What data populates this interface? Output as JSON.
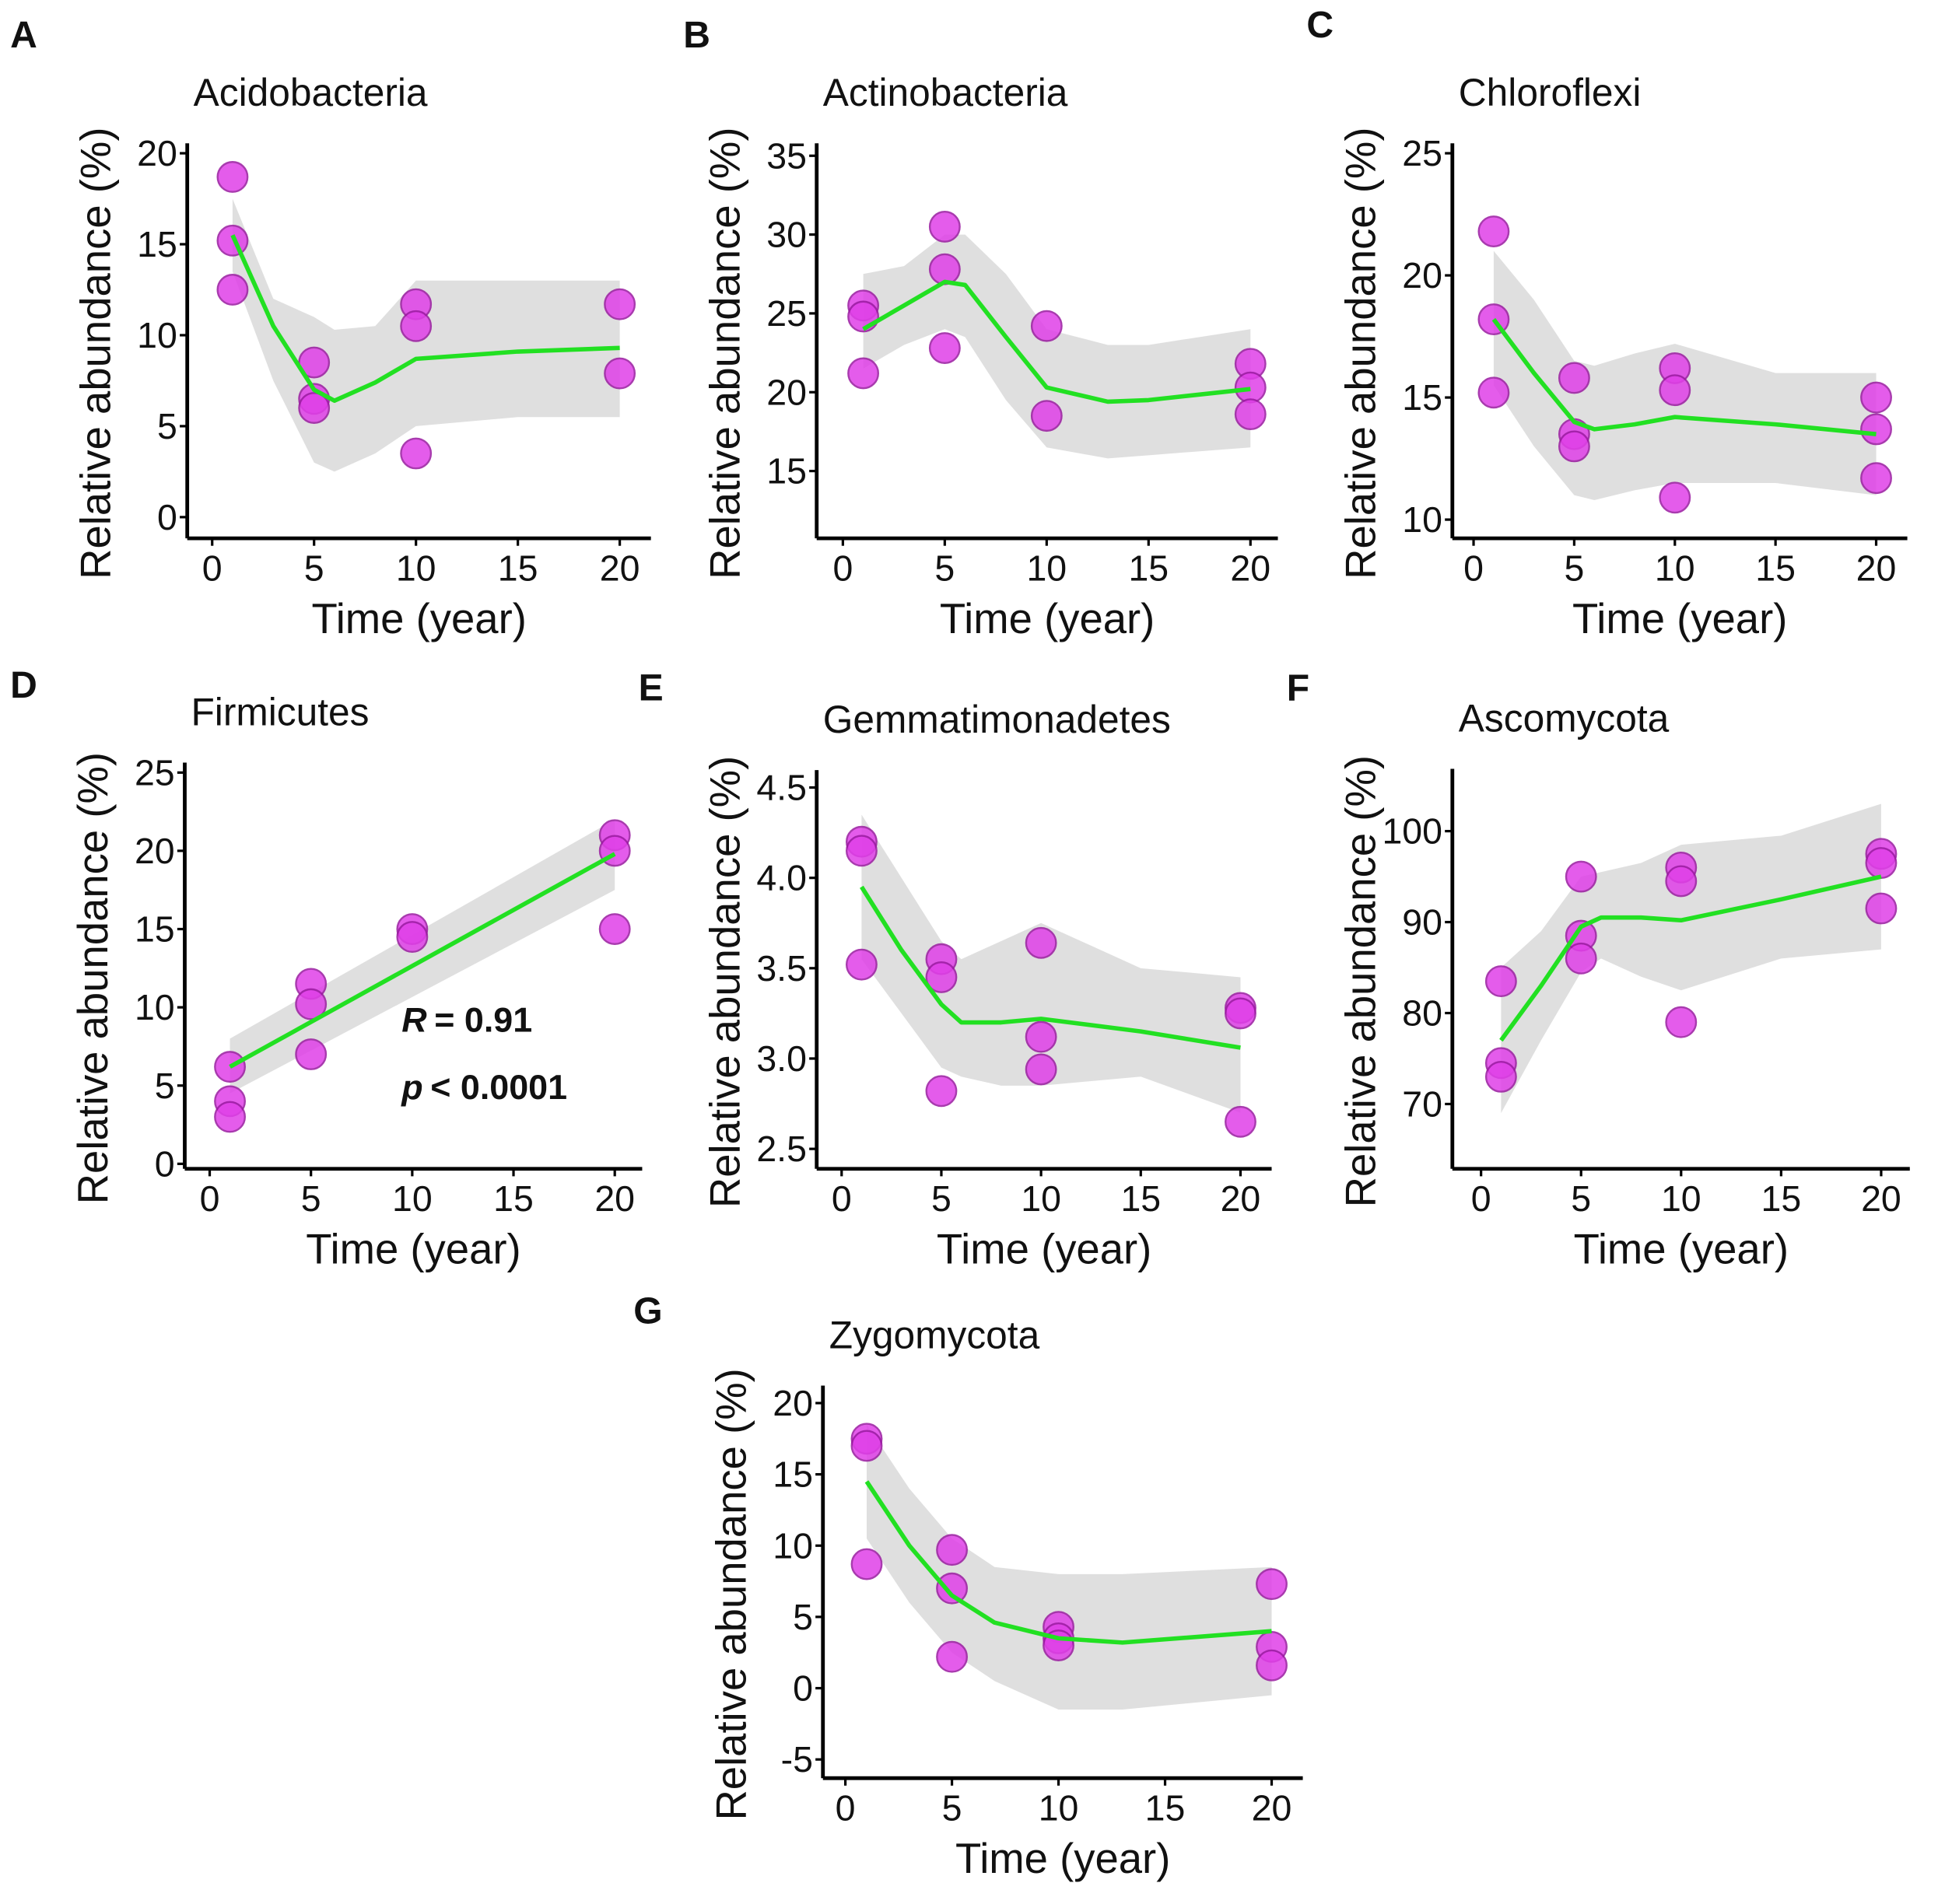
{
  "colors": {
    "point_fill": "#e040e8",
    "point_stroke": "#9a1aa0",
    "fit_line": "#22e022",
    "ci_band": "#dcdcdc"
  },
  "chart_data": [
    {
      "type": "scatter",
      "panel": "A",
      "title": "Acidobacteria",
      "xlabel": "Time (year)",
      "ylabel": "Relative abundance (%)",
      "xlim": [
        0,
        20
      ],
      "ylim": [
        -1,
        21
      ],
      "xticks": [
        "0",
        "5",
        "10",
        "15",
        "20"
      ],
      "yticks": [
        "0",
        "5",
        "10",
        "15",
        "20"
      ],
      "points": {
        "x": [
          1,
          1,
          1,
          5,
          5,
          5,
          10,
          10,
          10,
          20,
          20
        ],
        "y": [
          18.7,
          15.2,
          12.5,
          8.5,
          6.5,
          6.0,
          11.7,
          10.5,
          3.5,
          11.7,
          7.9
        ]
      },
      "fit": {
        "x": [
          1,
          3,
          5,
          6,
          8,
          10,
          15,
          20
        ],
        "y": [
          15.5,
          10.5,
          7.0,
          6.4,
          7.4,
          8.7,
          9.1,
          9.3
        ]
      },
      "ci": {
        "lower": [
          13.5,
          7.5,
          3.0,
          2.5,
          3.5,
          5.0,
          5.5,
          5.5
        ],
        "upper": [
          17.5,
          12.0,
          11.0,
          10.3,
          10.5,
          13.0,
          13.0,
          13.0
        ]
      }
    },
    {
      "type": "scatter",
      "panel": "B",
      "title": "Actinobacteria",
      "xlabel": "Time (year)",
      "ylabel": "Relative abundance (%)",
      "xlim": [
        0,
        20
      ],
      "ylim": [
        11,
        35
      ],
      "xticks": [
        "0",
        "5",
        "10",
        "15",
        "20"
      ],
      "yticks": [
        "15",
        "20",
        "25",
        "30",
        "35"
      ],
      "points": {
        "x": [
          1,
          1,
          1,
          5,
          5,
          5,
          10,
          10,
          20,
          20,
          20
        ],
        "y": [
          25.5,
          24.8,
          21.2,
          30.5,
          27.8,
          22.8,
          24.2,
          18.5,
          21.8,
          20.3,
          18.6
        ]
      },
      "fit": {
        "x": [
          1,
          3,
          5,
          6,
          8,
          10,
          13,
          15,
          20
        ],
        "y": [
          24.0,
          25.5,
          27.0,
          26.8,
          23.5,
          20.3,
          19.4,
          19.5,
          20.2
        ]
      },
      "ci": {
        "lower": [
          21.5,
          23.0,
          24.0,
          23.5,
          19.5,
          16.5,
          15.8,
          16.0,
          16.5
        ],
        "upper": [
          27.5,
          28.0,
          30.0,
          30.0,
          27.5,
          24.0,
          23.0,
          23.0,
          24.0
        ]
      }
    },
    {
      "type": "scatter",
      "panel": "C",
      "title": "Chloroflexi",
      "xlabel": "Time (year)",
      "ylabel": "Relative abundance (%)",
      "xlim": [
        0,
        20
      ],
      "ylim": [
        9.6,
        25
      ],
      "xticks": [
        "0",
        "5",
        "10",
        "15",
        "20"
      ],
      "yticks": [
        "10",
        "15",
        "20",
        "25"
      ],
      "points": {
        "x": [
          1,
          1,
          1,
          5,
          5,
          5,
          10,
          10,
          10,
          20,
          20,
          20
        ],
        "y": [
          21.8,
          18.2,
          15.2,
          15.8,
          13.5,
          13.0,
          16.2,
          15.3,
          10.9,
          15.0,
          13.7,
          11.7
        ]
      },
      "fit": {
        "x": [
          1,
          3,
          5,
          6,
          8,
          10,
          15,
          20
        ],
        "y": [
          18.2,
          16.0,
          14.0,
          13.7,
          13.9,
          14.2,
          13.9,
          13.5
        ]
      },
      "ci": {
        "lower": [
          15.5,
          13.0,
          11.0,
          10.8,
          11.2,
          11.5,
          11.5,
          11.0
        ],
        "upper": [
          21.0,
          19.0,
          16.5,
          16.3,
          16.8,
          17.2,
          16.0,
          16.0
        ]
      }
    },
    {
      "type": "scatter",
      "panel": "D",
      "title": "Firmicutes",
      "xlabel": "Time (year)",
      "ylabel": "Relative abundance (%)",
      "xlim": [
        0,
        20
      ],
      "ylim": [
        0,
        25
      ],
      "xticks": [
        "0",
        "5",
        "10",
        "15",
        "20"
      ],
      "yticks": [
        "0",
        "5",
        "10",
        "15",
        "20",
        "25"
      ],
      "points": {
        "x": [
          1,
          1,
          1,
          5,
          5,
          5,
          10,
          10,
          20,
          20,
          20
        ],
        "y": [
          6.2,
          4.0,
          3.0,
          11.5,
          10.2,
          7.0,
          15.0,
          14.5,
          21.0,
          20.0,
          15.0
        ]
      },
      "fit": {
        "x": [
          1,
          20
        ],
        "y": [
          6.2,
          19.8
        ]
      },
      "ci": {
        "lower": [
          4.5,
          17.5
        ],
        "upper": [
          8.0,
          22.0
        ]
      },
      "annotation": {
        "r_label": "R",
        "r_value": "= 0.91",
        "p_label": "p",
        "p_value": "< 0.0001"
      }
    },
    {
      "type": "scatter",
      "panel": "E",
      "title": "Gemmatimonadetes",
      "xlabel": "Time (year)",
      "ylabel": "Relative abundance (%)",
      "xlim": [
        0,
        20
      ],
      "ylim": [
        2.45,
        4.55
      ],
      "xticks": [
        "0",
        "5",
        "10",
        "15",
        "20"
      ],
      "yticks": [
        "2.5",
        "3.0",
        "3.5",
        "4.0",
        "4.5"
      ],
      "points": {
        "x": [
          1,
          1,
          1,
          5,
          5,
          5,
          10,
          10,
          10,
          20,
          20,
          20
        ],
        "y": [
          4.2,
          4.15,
          3.52,
          3.55,
          3.45,
          2.82,
          3.64,
          3.12,
          2.94,
          3.28,
          3.25,
          2.65
        ]
      },
      "fit": {
        "x": [
          1,
          3,
          5,
          6,
          8,
          10,
          15,
          20
        ],
        "y": [
          3.95,
          3.6,
          3.3,
          3.2,
          3.2,
          3.22,
          3.15,
          3.06
        ]
      },
      "ci": {
        "lower": [
          3.55,
          3.25,
          2.95,
          2.9,
          2.85,
          2.85,
          2.9,
          2.7
        ],
        "upper": [
          4.35,
          4.0,
          3.65,
          3.55,
          3.65,
          3.75,
          3.5,
          3.45
        ]
      }
    },
    {
      "type": "scatter",
      "panel": "F",
      "title": "Ascomycota",
      "xlabel": "Time (year)",
      "ylabel": "Relative abundance (%)",
      "xlim": [
        0,
        20
      ],
      "ylim": [
        66,
        107
      ],
      "xticks": [
        "0",
        "5",
        "10",
        "15",
        "20"
      ],
      "yticks": [
        "70",
        "80",
        "90",
        "100"
      ],
      "points": {
        "x": [
          1,
          1,
          1,
          5,
          5,
          5,
          10,
          10,
          10,
          20,
          20,
          20
        ],
        "y": [
          83.5,
          74.5,
          73.0,
          95.0,
          88.5,
          86.0,
          96.0,
          94.5,
          79.0,
          97.5,
          96.5,
          91.5
        ]
      },
      "fit": {
        "x": [
          1,
          3,
          5,
          6,
          8,
          10,
          15,
          20
        ],
        "y": [
          77.0,
          83.0,
          89.5,
          90.5,
          90.5,
          90.2,
          92.5,
          95.0
        ]
      },
      "ci": {
        "lower": [
          69.0,
          77.0,
          84.5,
          86.0,
          84.0,
          82.5,
          86.0,
          87.0
        ],
        "upper": [
          85.0,
          89.0,
          95.0,
          95.5,
          96.5,
          98.5,
          99.5,
          103.0
        ]
      }
    },
    {
      "type": "scatter",
      "panel": "G",
      "title": "Zygomycota",
      "xlabel": "Time (year)",
      "ylabel": "Relative abundance (%)",
      "xlim": [
        0,
        20
      ],
      "ylim": [
        -6,
        21
      ],
      "xticks": [
        "0",
        "5",
        "10",
        "15",
        "20"
      ],
      "yticks": [
        "-5",
        "0",
        "5",
        "10",
        "15",
        "20"
      ],
      "points": {
        "x": [
          1,
          1,
          1,
          5,
          5,
          5,
          10,
          10,
          10,
          20,
          20,
          20
        ],
        "y": [
          17.5,
          17.0,
          8.7,
          9.7,
          7.0,
          2.2,
          4.3,
          3.5,
          3.0,
          7.3,
          2.9,
          1.6
        ]
      },
      "fit": {
        "x": [
          1,
          3,
          5,
          7,
          10,
          13,
          20
        ],
        "y": [
          14.5,
          10.0,
          6.5,
          4.6,
          3.5,
          3.2,
          4.0
        ]
      },
      "ci": {
        "lower": [
          10.5,
          6.0,
          2.5,
          0.5,
          -1.5,
          -1.5,
          -0.5
        ],
        "upper": [
          18.5,
          14.0,
          10.5,
          8.5,
          8.0,
          8.0,
          8.5
        ]
      }
    }
  ]
}
